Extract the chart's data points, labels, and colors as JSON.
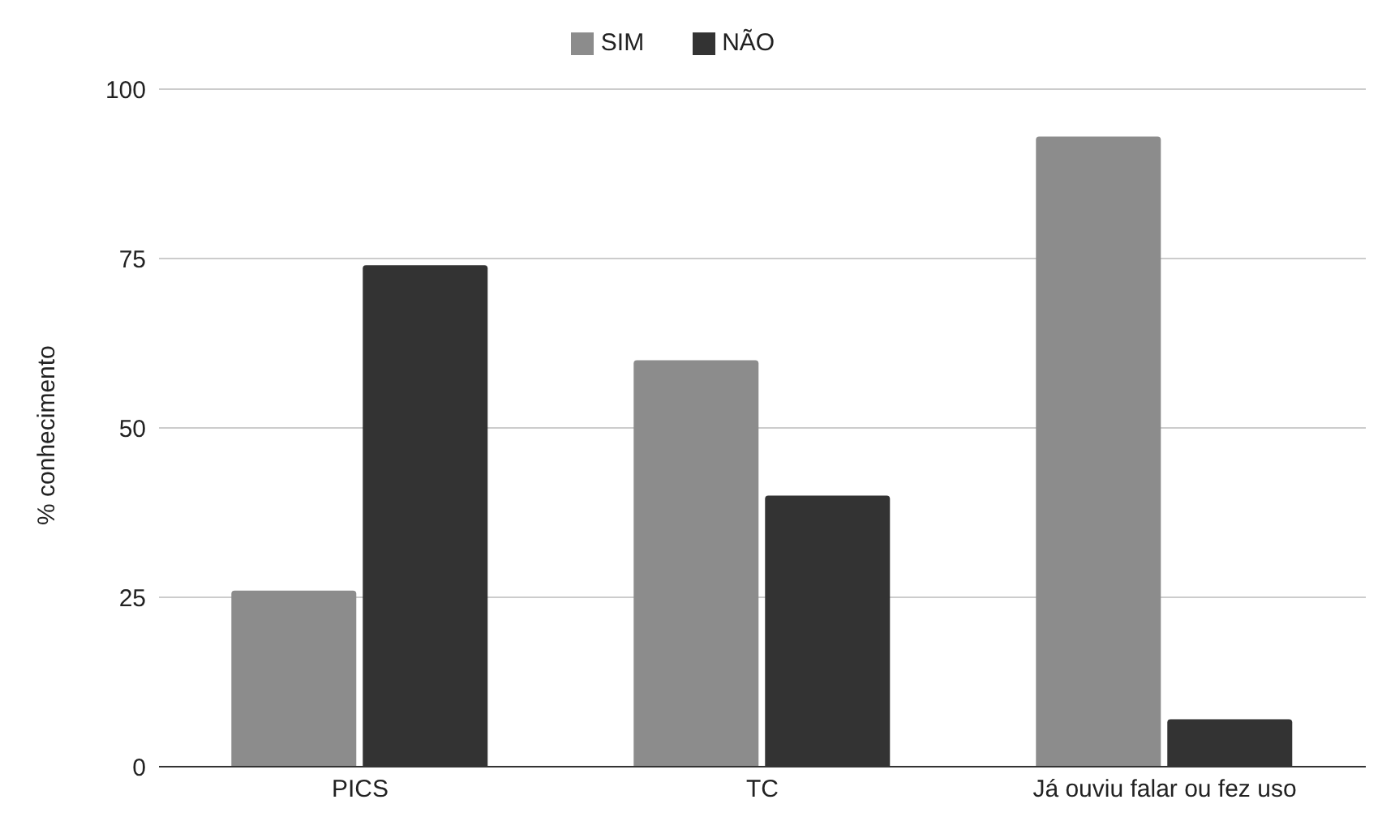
{
  "chart_data": {
    "type": "bar",
    "ylabel": "% conhecimento",
    "categories": [
      "PICS",
      "TC",
      "Já ouviu falar ou fez uso"
    ],
    "series": [
      {
        "name": "SIM",
        "color": "#8c8c8c",
        "values": [
          26,
          60,
          93
        ]
      },
      {
        "name": "NÃO",
        "color": "#333333",
        "values": [
          74,
          40,
          7
        ]
      }
    ],
    "ylim": [
      0,
      100
    ],
    "yticks": [
      0,
      25,
      50,
      75,
      100
    ],
    "grid": "y",
    "legend": "top"
  }
}
